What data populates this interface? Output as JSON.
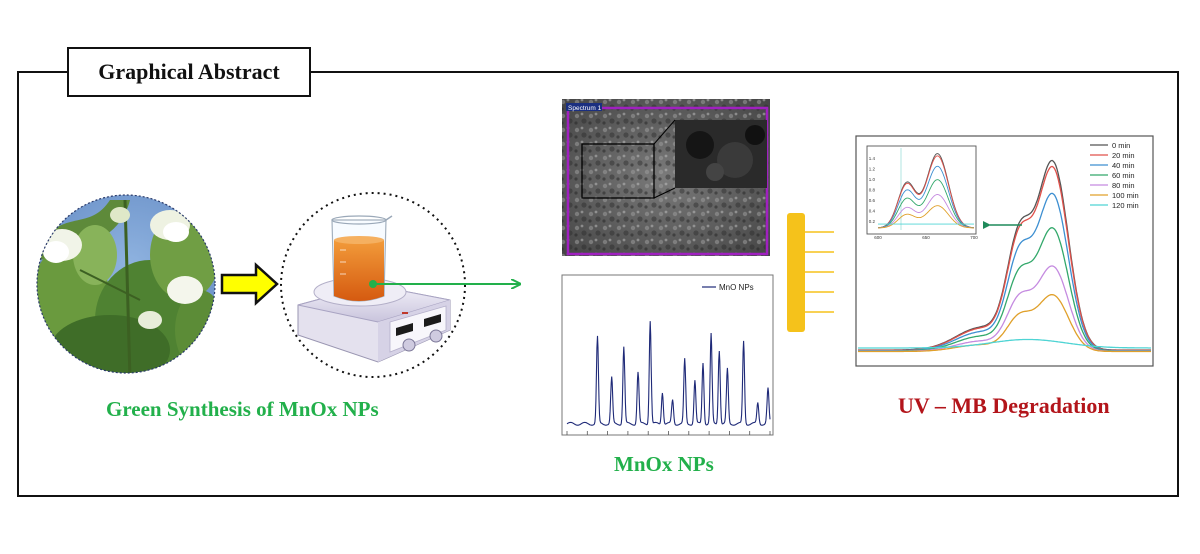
{
  "header": {
    "title": "Graphical Abstract"
  },
  "captions": {
    "synthesis": "Green Synthesis of MnOx NPs",
    "product": "MnOx NPs",
    "degradation": "UV – MB Degradation"
  },
  "sem": {
    "label": "Spectrum 1"
  },
  "colors": {
    "green": "#22b04b",
    "red": "#b3151b",
    "arrow_yellow": "#ffff00",
    "bracket": "#f5c21b",
    "xrd_line": "#1f2a78"
  },
  "xrd": {
    "legend": "MnO NPs",
    "chart_data": {
      "type": "line",
      "series": [
        {
          "name": "MnO NPs",
          "peaks": [
            {
              "x": 0.15,
              "h": 0.62
            },
            {
              "x": 0.22,
              "h": 0.33
            },
            {
              "x": 0.28,
              "h": 0.55
            },
            {
              "x": 0.35,
              "h": 0.37
            },
            {
              "x": 0.41,
              "h": 0.74
            },
            {
              "x": 0.47,
              "h": 0.23
            },
            {
              "x": 0.52,
              "h": 0.17
            },
            {
              "x": 0.58,
              "h": 0.46
            },
            {
              "x": 0.63,
              "h": 0.31
            },
            {
              "x": 0.67,
              "h": 0.44
            },
            {
              "x": 0.71,
              "h": 0.64
            },
            {
              "x": 0.75,
              "h": 0.53
            },
            {
              "x": 0.79,
              "h": 0.39
            },
            {
              "x": 0.87,
              "h": 0.59
            },
            {
              "x": 0.94,
              "h": 0.15
            },
            {
              "x": 0.99,
              "h": 0.25
            }
          ]
        }
      ]
    }
  },
  "uv": {
    "chart_data": {
      "type": "line",
      "legend_placement": "top-right",
      "series": [
        {
          "name": "0 min",
          "color": "#555555",
          "peak": 1.0
        },
        {
          "name": "20 min",
          "color": "#e0504a",
          "peak": 0.97
        },
        {
          "name": "40 min",
          "color": "#3d8fd1",
          "peak": 0.83
        },
        {
          "name": "60 min",
          "color": "#33a86b",
          "peak": 0.65
        },
        {
          "name": "80 min",
          "color": "#c58be0",
          "peak": 0.45
        },
        {
          "name": "100 min",
          "color": "#e0a02a",
          "peak": 0.3
        },
        {
          "name": "120 min",
          "color": "#4fd4d4",
          "peak": 0.045
        }
      ],
      "inset": {
        "x_ticks": [
          "600",
          "650",
          "700"
        ],
        "y_ticks": [
          "0.2",
          "0.4",
          "0.6",
          "0.8",
          "1.0",
          "1.2",
          "1.4"
        ]
      }
    }
  }
}
